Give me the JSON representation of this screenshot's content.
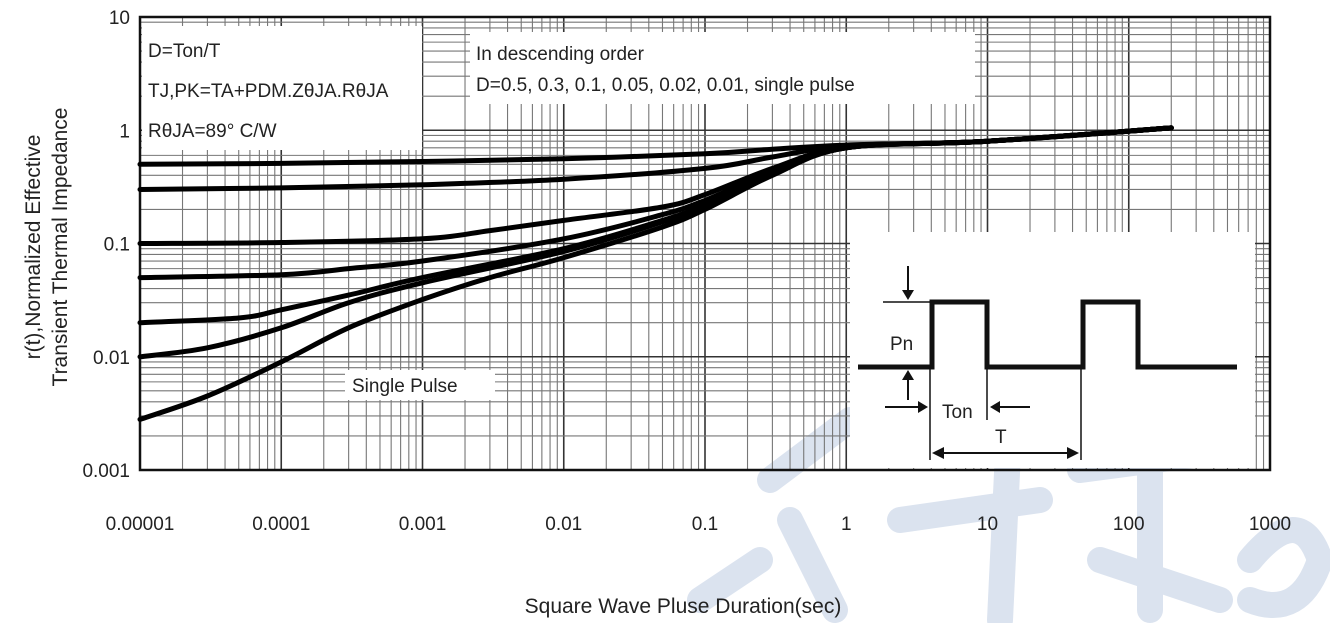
{
  "chart_data": {
    "type": "line",
    "x_scale": "log",
    "y_scale": "log",
    "xlim": [
      1e-05,
      1000
    ],
    "ylim": [
      0.001,
      10
    ],
    "grid": true,
    "xlabel": "Square Wave Pluse Duration(sec)",
    "ylabel": [
      "r(t),Normalized Effective",
      "Transient Thermal Impedance"
    ],
    "x_ticks": [
      "0.00001",
      "0.0001",
      "0.001",
      "0.01",
      "0.1",
      "1",
      "10",
      "100",
      "1000"
    ],
    "y_ticks": [
      "10",
      "1",
      "0.1",
      "0.01",
      "0.001"
    ],
    "series": [
      {
        "x": [
          1e-05,
          0.0001,
          0.001,
          0.01,
          0.1,
          0.3,
          1,
          10,
          200
        ],
        "y": [
          0.5,
          0.51,
          0.53,
          0.56,
          0.62,
          0.68,
          0.74,
          0.8,
          1.05
        ]
      },
      {
        "x": [
          1e-05,
          0.0001,
          0.001,
          0.01,
          0.1,
          0.3,
          1,
          10,
          200
        ],
        "y": [
          0.3,
          0.31,
          0.33,
          0.37,
          0.46,
          0.58,
          0.73,
          0.8,
          1.05
        ]
      },
      {
        "x": [
          1e-05,
          0.0001,
          0.001,
          0.003,
          0.01,
          0.05,
          0.1,
          0.3,
          1,
          10,
          200
        ],
        "y": [
          0.1,
          0.102,
          0.11,
          0.13,
          0.16,
          0.21,
          0.27,
          0.46,
          0.71,
          0.8,
          1.05
        ]
      },
      {
        "x": [
          1e-05,
          0.0001,
          0.0003,
          0.001,
          0.01,
          0.05,
          0.1,
          0.3,
          1,
          10,
          200
        ],
        "y": [
          0.05,
          0.053,
          0.06,
          0.07,
          0.11,
          0.18,
          0.24,
          0.43,
          0.7,
          0.8,
          1.05
        ]
      },
      {
        "x": [
          1e-05,
          5e-05,
          0.0001,
          0.0003,
          0.001,
          0.01,
          0.05,
          0.1,
          0.3,
          1,
          10,
          200
        ],
        "y": [
          0.02,
          0.022,
          0.026,
          0.035,
          0.05,
          0.09,
          0.16,
          0.22,
          0.42,
          0.7,
          0.8,
          1.05
        ]
      },
      {
        "x": [
          1e-05,
          3e-05,
          0.0001,
          0.0003,
          0.001,
          0.01,
          0.05,
          0.1,
          0.3,
          1,
          10,
          200
        ],
        "y": [
          0.01,
          0.012,
          0.018,
          0.03,
          0.045,
          0.085,
          0.155,
          0.21,
          0.41,
          0.7,
          0.8,
          1.05
        ]
      },
      {
        "x": [
          1e-05,
          3e-05,
          0.0001,
          0.0003,
          0.001,
          0.003,
          0.01,
          0.05,
          0.1,
          0.3,
          1,
          10,
          200
        ],
        "y": [
          0.0028,
          0.0045,
          0.009,
          0.018,
          0.032,
          0.05,
          0.075,
          0.14,
          0.2,
          0.4,
          0.7,
          0.8,
          1.05
        ]
      }
    ],
    "annotations": {
      "d_formula": "D=Ton/T",
      "tj_formula": "TJ,PK=TA+PDM.ZθJA.RθJA",
      "rja_formula": "RθJA=89° C/W",
      "order_line1": "In descending order",
      "order_line2": "D=0.5, 0.3, 0.1, 0.05, 0.02, 0.01, single pulse",
      "single_pulse": "Single Pulse"
    },
    "inset": {
      "pdm_label": "Pn",
      "ton_label": "Ton",
      "t_label": "T"
    }
  }
}
